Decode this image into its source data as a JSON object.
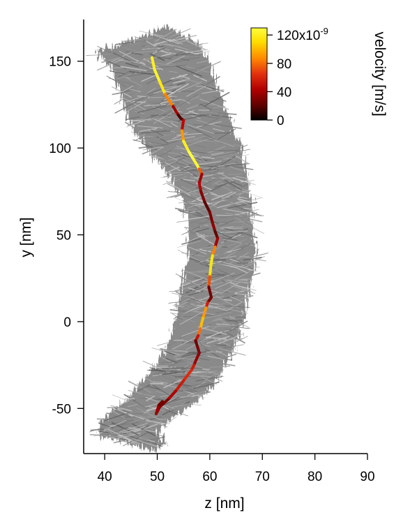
{
  "chart_data": {
    "type": "line",
    "xlabel": "z [nm]",
    "ylabel": "y [nm]",
    "xlim": [
      36,
      90
    ],
    "ylim": [
      -76,
      174
    ],
    "x_ticks": [
      40,
      50,
      60,
      70,
      80,
      90
    ],
    "y_ticks": [
      -50,
      0,
      50,
      100,
      150
    ],
    "x_tick_labels": [
      "40",
      "50",
      "60",
      "70",
      "80",
      "90"
    ],
    "y_tick_labels": [
      "-50",
      "0",
      "50",
      "100",
      "150"
    ],
    "grid": false,
    "colorbar": {
      "label": "velocity [m/s]",
      "range": [
        0,
        1.3e-07
      ],
      "ticks": [
        0,
        40,
        80,
        120
      ],
      "tick_labels": [
        "0",
        "40",
        "80",
        "120x10"
      ],
      "top_exponent": "-9",
      "colormap": [
        "#000000",
        "#5a0000",
        "#b00000",
        "#e23010",
        "#ff8a00",
        "#ffdd00",
        "#ffff40"
      ]
    },
    "background_envelope": {
      "description_color": "#8a8a8a",
      "left_edge": [
        [
          48,
          166
        ],
        [
          43,
          160
        ],
        [
          38,
          156
        ],
        [
          41,
          148
        ],
        [
          43,
          130
        ],
        [
          45,
          115
        ],
        [
          48,
          100
        ],
        [
          52,
          85
        ],
        [
          55,
          70
        ],
        [
          56,
          55
        ],
        [
          56,
          40
        ],
        [
          55,
          25
        ],
        [
          54,
          10
        ],
        [
          53,
          -5
        ],
        [
          51,
          -20
        ],
        [
          47,
          -35
        ],
        [
          43,
          -48
        ],
        [
          39,
          -58
        ],
        [
          39,
          -66
        ],
        [
          44,
          -70
        ],
        [
          49,
          -74
        ]
      ],
      "right_edge": [
        [
          52,
          170
        ],
        [
          58,
          160
        ],
        [
          60,
          148
        ],
        [
          62,
          130
        ],
        [
          64,
          115
        ],
        [
          66,
          100
        ],
        [
          67,
          85
        ],
        [
          68,
          70
        ],
        [
          68,
          55
        ],
        [
          69,
          40
        ],
        [
          68,
          25
        ],
        [
          67,
          10
        ],
        [
          66,
          -5
        ],
        [
          64,
          -20
        ],
        [
          61,
          -35
        ],
        [
          58,
          -45
        ],
        [
          53,
          -55
        ],
        [
          50,
          -64
        ],
        [
          52,
          -70
        ],
        [
          49,
          -74
        ]
      ]
    },
    "series": [
      {
        "x": [
          49.0,
          49.5,
          50.5,
          51.5,
          53.0,
          54.0,
          54.5,
          55.0,
          54.7,
          55.0,
          56.0,
          57.0,
          58.0,
          58.5,
          58.0,
          58.3,
          59.0,
          60.0,
          60.5,
          61.0,
          61.5,
          61.0,
          60.5,
          60.2,
          60.0,
          59.8,
          60.3,
          59.6,
          59.3,
          58.7,
          58.2,
          57.8,
          57.3,
          57.7,
          58.0,
          57.4,
          57.0,
          56.5,
          55.0,
          53.5,
          52.0,
          50.5,
          49.8,
          50.3,
          51.0
        ],
        "y": [
          152,
          145,
          138,
          131,
          124,
          119,
          117,
          116,
          110,
          104,
          98,
          93,
          88,
          85,
          80,
          75,
          69,
          63,
          57,
          52,
          48,
          43,
          38,
          32,
          26,
          20,
          14,
          11,
          8,
          2,
          -4,
          -8,
          -11,
          -15,
          -18,
          -22,
          -25,
          -28,
          -34,
          -40,
          -45,
          -49,
          -53,
          -48,
          -46
        ],
        "velocity_1e9": [
          115,
          125,
          120,
          110,
          60,
          20,
          15,
          25,
          70,
          110,
          130,
          130,
          120,
          30,
          50,
          40,
          25,
          20,
          40,
          30,
          20,
          60,
          110,
          120,
          105,
          40,
          15,
          45,
          70,
          110,
          90,
          70,
          35,
          20,
          40,
          30,
          45,
          65,
          60,
          50,
          35,
          25,
          40,
          35,
          20
        ]
      }
    ]
  }
}
